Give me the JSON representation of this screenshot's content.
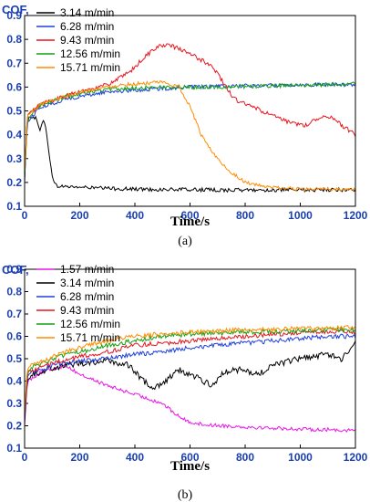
{
  "figure": {
    "panel_a_label": "(a)",
    "panel_b_label": "(b)"
  },
  "chart_data": [
    {
      "type": "line",
      "panel": "(a)",
      "ylabel": "COF,",
      "xlabel": "Time/s",
      "xlim": [
        0,
        1200
      ],
      "ylim": [
        0.1,
        0.9
      ],
      "xticks": [
        "0",
        "200",
        "400",
        "600",
        "800",
        "1000",
        "1200"
      ],
      "yticks": [
        "0.1",
        "0.2",
        "0.3",
        "0.4",
        "0.5",
        "0.6",
        "0.7",
        "0.8",
        "0.9"
      ],
      "legend_position": "top-left",
      "series": [
        {
          "name": "3.14 m/min",
          "color": "#000000",
          "noise": 0.008,
          "points": [
            [
              0,
              0.2
            ],
            [
              8,
              0.44
            ],
            [
              20,
              0.48
            ],
            [
              40,
              0.47
            ],
            [
              55,
              0.42
            ],
            [
              65,
              0.46
            ],
            [
              75,
              0.44
            ],
            [
              85,
              0.36
            ],
            [
              95,
              0.27
            ],
            [
              105,
              0.2
            ],
            [
              115,
              0.185
            ],
            [
              200,
              0.18
            ],
            [
              300,
              0.175
            ],
            [
              400,
              0.172
            ],
            [
              500,
              0.17
            ],
            [
              600,
              0.17
            ],
            [
              700,
              0.168
            ],
            [
              800,
              0.168
            ],
            [
              1000,
              0.168
            ],
            [
              1200,
              0.17
            ]
          ]
        },
        {
          "name": "6.28 m/min",
          "color": "#1f3fe0",
          "noise": 0.008,
          "points": [
            [
              0,
              0.22
            ],
            [
              10,
              0.45
            ],
            [
              50,
              0.51
            ],
            [
              150,
              0.55
            ],
            [
              300,
              0.58
            ],
            [
              450,
              0.59
            ],
            [
              600,
              0.6
            ],
            [
              800,
              0.605
            ],
            [
              1000,
              0.61
            ],
            [
              1200,
              0.61
            ]
          ]
        },
        {
          "name": "9.43 m/min",
          "color": "#e8141e",
          "noise": 0.009,
          "points": [
            [
              0,
              0.25
            ],
            [
              10,
              0.48
            ],
            [
              60,
              0.53
            ],
            [
              200,
              0.58
            ],
            [
              300,
              0.61
            ],
            [
              380,
              0.66
            ],
            [
              430,
              0.72
            ],
            [
              480,
              0.77
            ],
            [
              530,
              0.775
            ],
            [
              580,
              0.75
            ],
            [
              630,
              0.72
            ],
            [
              680,
              0.69
            ],
            [
              720,
              0.62
            ],
            [
              760,
              0.55
            ],
            [
              820,
              0.52
            ],
            [
              900,
              0.48
            ],
            [
              960,
              0.45
            ],
            [
              1020,
              0.44
            ],
            [
              1080,
              0.48
            ],
            [
              1120,
              0.47
            ],
            [
              1160,
              0.43
            ],
            [
              1200,
              0.4
            ]
          ]
        },
        {
          "name": "12.56 m/min",
          "color": "#13a013",
          "noise": 0.008,
          "points": [
            [
              0,
              0.22
            ],
            [
              10,
              0.47
            ],
            [
              50,
              0.52
            ],
            [
              150,
              0.56
            ],
            [
              300,
              0.59
            ],
            [
              500,
              0.6
            ],
            [
              700,
              0.6
            ],
            [
              900,
              0.605
            ],
            [
              1100,
              0.61
            ],
            [
              1200,
              0.615
            ]
          ]
        },
        {
          "name": "15.71 m/min",
          "color": "#ff8c00",
          "noise": 0.007,
          "points": [
            [
              0,
              0.24
            ],
            [
              10,
              0.48
            ],
            [
              60,
              0.53
            ],
            [
              200,
              0.58
            ],
            [
              350,
              0.61
            ],
            [
              500,
              0.62
            ],
            [
              560,
              0.6
            ],
            [
              600,
              0.52
            ],
            [
              640,
              0.4
            ],
            [
              680,
              0.33
            ],
            [
              730,
              0.26
            ],
            [
              800,
              0.2
            ],
            [
              880,
              0.18
            ],
            [
              1000,
              0.172
            ],
            [
              1200,
              0.17
            ]
          ]
        }
      ]
    },
    {
      "type": "line",
      "panel": "(b)",
      "ylabel": "COF,",
      "xlabel": "Time/s",
      "xlim": [
        0,
        1200
      ],
      "ylim": [
        0.1,
        0.9
      ],
      "xticks": [
        "0",
        "200",
        "400",
        "600",
        "800",
        "1000",
        "1200"
      ],
      "yticks": [
        "0.1",
        "0.2",
        "0.3",
        "0.4",
        "0.5",
        "0.6",
        "0.7",
        "0.8",
        "0.9"
      ],
      "legend_position": "top-left",
      "series": [
        {
          "name": "1.57 m/min",
          "color": "#e815e8",
          "noise": 0.008,
          "points": [
            [
              0,
              0.2
            ],
            [
              10,
              0.4
            ],
            [
              60,
              0.44
            ],
            [
              150,
              0.47
            ],
            [
              200,
              0.43
            ],
            [
              300,
              0.38
            ],
            [
              400,
              0.34
            ],
            [
              500,
              0.3
            ],
            [
              550,
              0.25
            ],
            [
              590,
              0.22
            ],
            [
              650,
              0.205
            ],
            [
              800,
              0.195
            ],
            [
              1000,
              0.185
            ],
            [
              1200,
              0.18
            ]
          ]
        },
        {
          "name": "3.14 m/min",
          "color": "#000000",
          "noise": 0.014,
          "points": [
            [
              0,
              0.22
            ],
            [
              10,
              0.42
            ],
            [
              100,
              0.46
            ],
            [
              200,
              0.48
            ],
            [
              300,
              0.49
            ],
            [
              380,
              0.47
            ],
            [
              430,
              0.4
            ],
            [
              470,
              0.37
            ],
            [
              520,
              0.41
            ],
            [
              560,
              0.45
            ],
            [
              600,
              0.43
            ],
            [
              680,
              0.38
            ],
            [
              720,
              0.44
            ],
            [
              780,
              0.45
            ],
            [
              850,
              0.43
            ],
            [
              900,
              0.47
            ],
            [
              1000,
              0.5
            ],
            [
              1100,
              0.52
            ],
            [
              1150,
              0.5
            ],
            [
              1200,
              0.57
            ]
          ]
        },
        {
          "name": "6.28 m/min",
          "color": "#1f3fe0",
          "noise": 0.01,
          "points": [
            [
              0,
              0.24
            ],
            [
              10,
              0.43
            ],
            [
              100,
              0.47
            ],
            [
              200,
              0.49
            ],
            [
              300,
              0.5
            ],
            [
              400,
              0.52
            ],
            [
              500,
              0.53
            ],
            [
              600,
              0.55
            ],
            [
              700,
              0.56
            ],
            [
              800,
              0.57
            ],
            [
              900,
              0.58
            ],
            [
              1000,
              0.59
            ],
            [
              1100,
              0.6
            ],
            [
              1200,
              0.6
            ]
          ]
        },
        {
          "name": "9.43 m/min",
          "color": "#e8141e",
          "noise": 0.01,
          "points": [
            [
              0,
              0.24
            ],
            [
              10,
              0.44
            ],
            [
              100,
              0.48
            ],
            [
              200,
              0.51
            ],
            [
              300,
              0.53
            ],
            [
              400,
              0.56
            ],
            [
              500,
              0.57
            ],
            [
              600,
              0.58
            ],
            [
              700,
              0.59
            ],
            [
              800,
              0.6
            ],
            [
              900,
              0.61
            ],
            [
              1000,
              0.615
            ],
            [
              1100,
              0.62
            ],
            [
              1200,
              0.62
            ]
          ]
        },
        {
          "name": "12.56 m/min",
          "color": "#13a013",
          "noise": 0.01,
          "points": [
            [
              0,
              0.26
            ],
            [
              10,
              0.45
            ],
            [
              100,
              0.5
            ],
            [
              200,
              0.53
            ],
            [
              300,
              0.56
            ],
            [
              400,
              0.58
            ],
            [
              500,
              0.6
            ],
            [
              600,
              0.61
            ],
            [
              700,
              0.615
            ],
            [
              800,
              0.62
            ],
            [
              900,
              0.62
            ],
            [
              1000,
              0.625
            ],
            [
              1100,
              0.63
            ],
            [
              1200,
              0.63
            ]
          ]
        },
        {
          "name": "15.71 m/min",
          "color": "#ff8c00",
          "noise": 0.01,
          "points": [
            [
              0,
              0.27
            ],
            [
              10,
              0.46
            ],
            [
              100,
              0.51
            ],
            [
              200,
              0.55
            ],
            [
              300,
              0.58
            ],
            [
              400,
              0.6
            ],
            [
              500,
              0.61
            ],
            [
              600,
              0.62
            ],
            [
              700,
              0.625
            ],
            [
              800,
              0.63
            ],
            [
              900,
              0.63
            ],
            [
              1000,
              0.635
            ],
            [
              1100,
              0.635
            ],
            [
              1200,
              0.64
            ]
          ]
        }
      ]
    }
  ]
}
